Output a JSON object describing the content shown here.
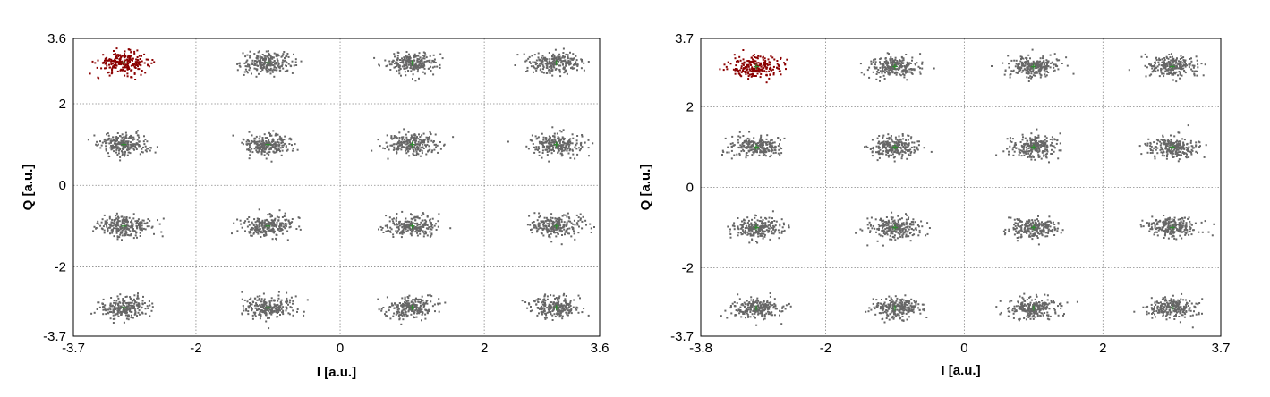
{
  "chart_data": [
    {
      "type": "scatter",
      "title": "",
      "xlabel": "I [a.u.]",
      "ylabel": "Q [a.u.]",
      "xlim": [
        -3.7,
        3.6
      ],
      "ylim": [
        -3.7,
        3.6
      ],
      "xticks": [
        "-3.7",
        "-2",
        "0",
        "2",
        "3.6"
      ],
      "xtick_values": [
        -3.7,
        -2,
        0,
        2,
        3.6
      ],
      "yticks": [
        "3.6",
        "2",
        "0",
        "-2",
        "-3.7"
      ],
      "ytick_values": [
        3.6,
        2,
        0,
        -2,
        -3.7
      ],
      "grid": true,
      "constellation_points": [
        [
          -3,
          3
        ],
        [
          -1,
          3
        ],
        [
          1,
          3
        ],
        [
          3,
          3
        ],
        [
          -3,
          1
        ],
        [
          -1,
          1
        ],
        [
          1,
          1
        ],
        [
          3,
          1
        ],
        [
          -3,
          -1
        ],
        [
          -1,
          -1
        ],
        [
          1,
          -1
        ],
        [
          3,
          -1
        ],
        [
          -3,
          -3
        ],
        [
          -1,
          -3
        ],
        [
          1,
          -3
        ],
        [
          3,
          -3
        ]
      ],
      "highlighted_point": [
        -3,
        3
      ],
      "noise_std_i": 0.18,
      "noise_std_q": 0.13,
      "samples_per_point": 240,
      "colors": {
        "samples": "#666666",
        "highlight": "#8b0000",
        "ideal": "#2e8b2e"
      }
    },
    {
      "type": "scatter",
      "title": "",
      "xlabel": "I [a.u.]",
      "ylabel": "Q [a.u.]",
      "xlim": [
        -3.8,
        3.7
      ],
      "ylim": [
        -3.7,
        3.7
      ],
      "xticks": [
        "-3.8",
        "-2",
        "0",
        "2",
        "3.7"
      ],
      "xtick_values": [
        -3.8,
        -2,
        0,
        2,
        3.7
      ],
      "yticks": [
        "3.7",
        "2",
        "0",
        "-2",
        "-3.7"
      ],
      "ytick_values": [
        3.7,
        2,
        0,
        -2,
        -3.7
      ],
      "grid": true,
      "constellation_points": [
        [
          -3,
          3
        ],
        [
          -1,
          3
        ],
        [
          1,
          3
        ],
        [
          3,
          3
        ],
        [
          -3,
          1
        ],
        [
          -1,
          1
        ],
        [
          1,
          1
        ],
        [
          3,
          1
        ],
        [
          -3,
          -1
        ],
        [
          -1,
          -1
        ],
        [
          1,
          -1
        ],
        [
          3,
          -1
        ],
        [
          -3,
          -3
        ],
        [
          -1,
          -3
        ],
        [
          1,
          -3
        ],
        [
          3,
          -3
        ]
      ],
      "highlighted_point": [
        -3,
        3
      ],
      "noise_std_i": 0.18,
      "noise_std_q": 0.13,
      "samples_per_point": 240,
      "colors": {
        "samples": "#666666",
        "highlight": "#8b0000",
        "ideal": "#2e8b2e"
      }
    }
  ]
}
